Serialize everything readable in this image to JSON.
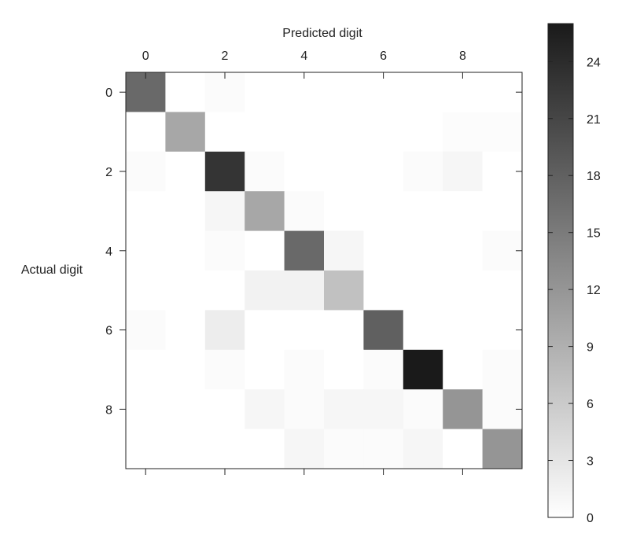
{
  "chart_data": {
    "type": "heatmap",
    "xlabel": "Predicted digit",
    "ylabel": "Actual digit",
    "x_categories": [
      "0",
      "1",
      "2",
      "3",
      "4",
      "5",
      "6",
      "7",
      "8",
      "9"
    ],
    "y_categories": [
      "0",
      "1",
      "2",
      "3",
      "4",
      "5",
      "6",
      "7",
      "8",
      "9"
    ],
    "x_tick_labels": [
      "0",
      "2",
      "4",
      "6",
      "8"
    ],
    "y_tick_labels": [
      "0",
      "2",
      "4",
      "6",
      "8"
    ],
    "colorscale": {
      "min": 0,
      "max": 26,
      "low_color": "#ffffff",
      "high_color": "#1a1a1a"
    },
    "colorbar_ticks": [
      "0",
      "3",
      "6",
      "9",
      "12",
      "15",
      "18",
      "21",
      "24"
    ],
    "matrix": [
      [
        17,
        0,
        0.5,
        0,
        0,
        0,
        0,
        0,
        0,
        0
      ],
      [
        0,
        10,
        0,
        0,
        0,
        0,
        0,
        0,
        0.3,
        0.3
      ],
      [
        0.5,
        0,
        23,
        0.5,
        0,
        0,
        0,
        0.5,
        1,
        0
      ],
      [
        0,
        0,
        1,
        10,
        0.5,
        0,
        0,
        0,
        0,
        0
      ],
      [
        0,
        0,
        0.5,
        0,
        17,
        1,
        0,
        0,
        0,
        0.5
      ],
      [
        0,
        0,
        0,
        1.5,
        1.5,
        7,
        0,
        0,
        0,
        0
      ],
      [
        0.5,
        0,
        2,
        0,
        0,
        0,
        18,
        0,
        0,
        0
      ],
      [
        0,
        0,
        0.5,
        0,
        0.5,
        0,
        0.5,
        26,
        0,
        0.5
      ],
      [
        0,
        0,
        0,
        1,
        0.5,
        1,
        1,
        0.5,
        12,
        0.5
      ],
      [
        0,
        0,
        0,
        0,
        1,
        0.5,
        0.5,
        1,
        0,
        12
      ]
    ]
  }
}
